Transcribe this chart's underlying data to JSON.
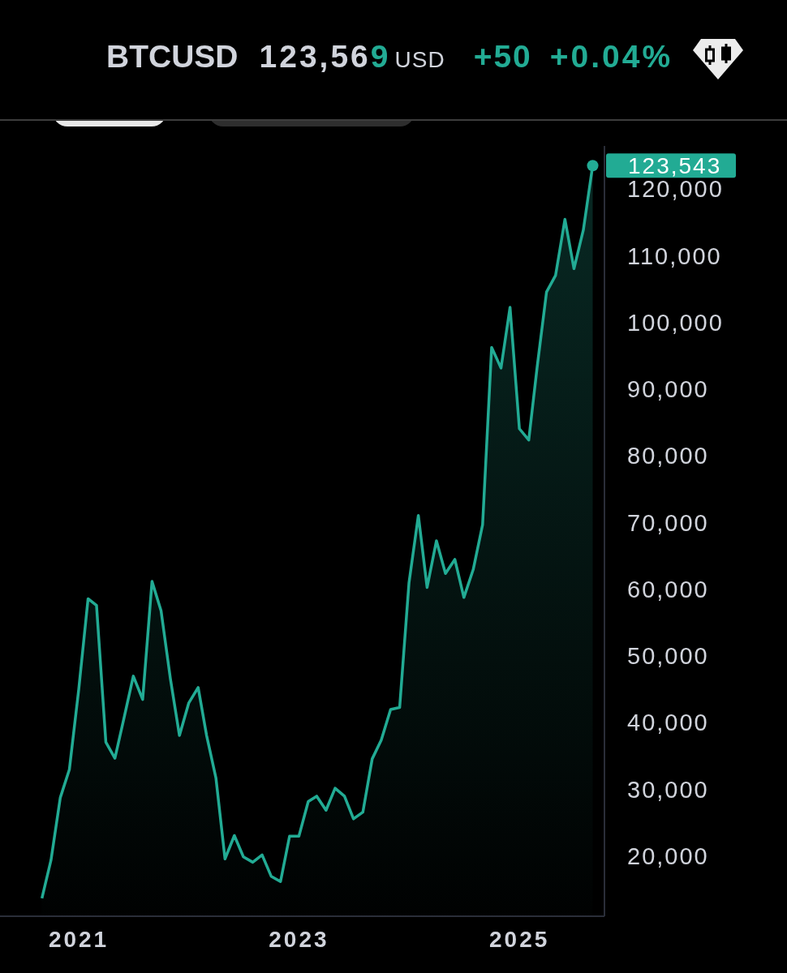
{
  "chart_data": {
    "type": "area",
    "title": "BTCUSD",
    "annotations": [
      "123,569",
      "USD",
      "+50",
      "+0.04%",
      {
        "text": "123,543",
        "x": "2025-09",
        "y": 123543
      }
    ],
    "x": [
      "2020-09",
      "2020-10",
      "2020-11",
      "2020-12",
      "2021-01",
      "2021-02",
      "2021-03",
      "2021-04",
      "2021-05",
      "2021-06",
      "2021-07",
      "2021-08",
      "2021-09",
      "2021-10",
      "2021-11",
      "2021-12",
      "2022-01",
      "2022-02",
      "2022-03",
      "2022-04",
      "2022-05",
      "2022-06",
      "2022-07",
      "2022-08",
      "2022-09",
      "2022-10",
      "2022-11",
      "2022-12",
      "2023-01",
      "2023-02",
      "2023-03",
      "2023-04",
      "2023-05",
      "2023-06",
      "2023-07",
      "2023-08",
      "2023-09",
      "2023-10",
      "2023-11",
      "2023-12",
      "2024-01",
      "2024-02",
      "2024-03",
      "2024-04",
      "2024-05",
      "2024-06",
      "2024-07",
      "2024-08",
      "2024-09",
      "2024-10",
      "2024-11",
      "2024-12",
      "2025-01",
      "2025-02",
      "2025-03",
      "2025-04",
      "2025-05",
      "2025-06",
      "2025-07",
      "2025-08",
      "2025-09"
    ],
    "series": [
      {
        "color": "#22ab94",
        "values": [
          13700,
          19400,
          28800,
          33000,
          45000,
          58600,
          57600,
          37100,
          34700,
          40900,
          47000,
          43500,
          61200,
          56800,
          46600,
          38100,
          43000,
          45300,
          38100,
          31700,
          19600,
          23100,
          19900,
          19100,
          20200,
          17000,
          16200,
          23000,
          23000,
          28200,
          29000,
          26900,
          30200,
          29000,
          25600,
          26600,
          34600,
          37400,
          42000,
          42300,
          61000,
          71100,
          60300,
          67300,
          62400,
          64500,
          58800,
          63000,
          69700,
          96300,
          93200,
          102300,
          84100,
          82400,
          93400,
          104600,
          107100,
          115500,
          108100,
          113900,
          123543
        ]
      }
    ],
    "xlim": [
      "2020-04-15",
      "2025-10-10"
    ],
    "xticks": [
      "2021",
      "2023",
      "2025"
    ],
    "ylim": [
      11000,
      126500
    ],
    "yticks": [
      {
        "value": 20000,
        "label": "20,000"
      },
      {
        "value": 30000,
        "label": "30,000"
      },
      {
        "value": 40000,
        "label": "40,000"
      },
      {
        "value": 50000,
        "label": "50,000"
      },
      {
        "value": 60000,
        "label": "60,000"
      },
      {
        "value": 70000,
        "label": "70,000"
      },
      {
        "value": 80000,
        "label": "80,000"
      },
      {
        "value": 90000,
        "label": "90,000"
      },
      {
        "value": 100000,
        "label": "100,000"
      },
      {
        "value": 110000,
        "label": "110,000"
      },
      {
        "value": 120000,
        "label": "120,000"
      }
    ]
  }
}
